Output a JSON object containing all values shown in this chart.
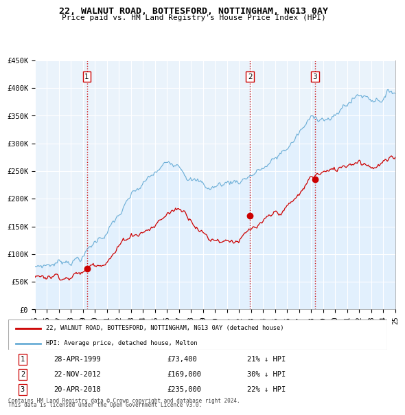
{
  "title": "22, WALNUT ROAD, BOTTESFORD, NOTTINGHAM, NG13 0AY",
  "subtitle": "Price paid vs. HM Land Registry's House Price Index (HPI)",
  "ylim": [
    0,
    450000
  ],
  "yticks": [
    0,
    50000,
    100000,
    150000,
    200000,
    250000,
    300000,
    350000,
    400000,
    450000
  ],
  "ytick_labels": [
    "£0",
    "£50K",
    "£100K",
    "£150K",
    "£200K",
    "£250K",
    "£300K",
    "£350K",
    "£400K",
    "£450K"
  ],
  "hpi_color": "#6baed6",
  "hpi_fill_color": "#ddeeff",
  "price_color": "#cc0000",
  "vline_color": "#cc0000",
  "purchases": [
    {
      "date_num": 1999.32,
      "price": 73400,
      "label": "1"
    },
    {
      "date_num": 2012.9,
      "price": 169000,
      "label": "2"
    },
    {
      "date_num": 2018.3,
      "price": 235000,
      "label": "3"
    }
  ],
  "legend_house": "22, WALNUT ROAD, BOTTESFORD, NOTTINGHAM, NG13 0AY (detached house)",
  "legend_hpi": "HPI: Average price, detached house, Melton",
  "footer1": "Contains HM Land Registry data © Crown copyright and database right 2024.",
  "footer2": "This data is licensed under the Open Government Licence v3.0.",
  "table_rows": [
    [
      "1",
      "28-APR-1999",
      "£73,400",
      "21% ↓ HPI"
    ],
    [
      "2",
      "22-NOV-2012",
      "£169,000",
      "30% ↓ HPI"
    ],
    [
      "3",
      "20-APR-2018",
      "£235,000",
      "22% ↓ HPI"
    ]
  ],
  "background_color": "#ffffff",
  "chart_bg_color": "#eaf3fb",
  "grid_color": "#ffffff"
}
